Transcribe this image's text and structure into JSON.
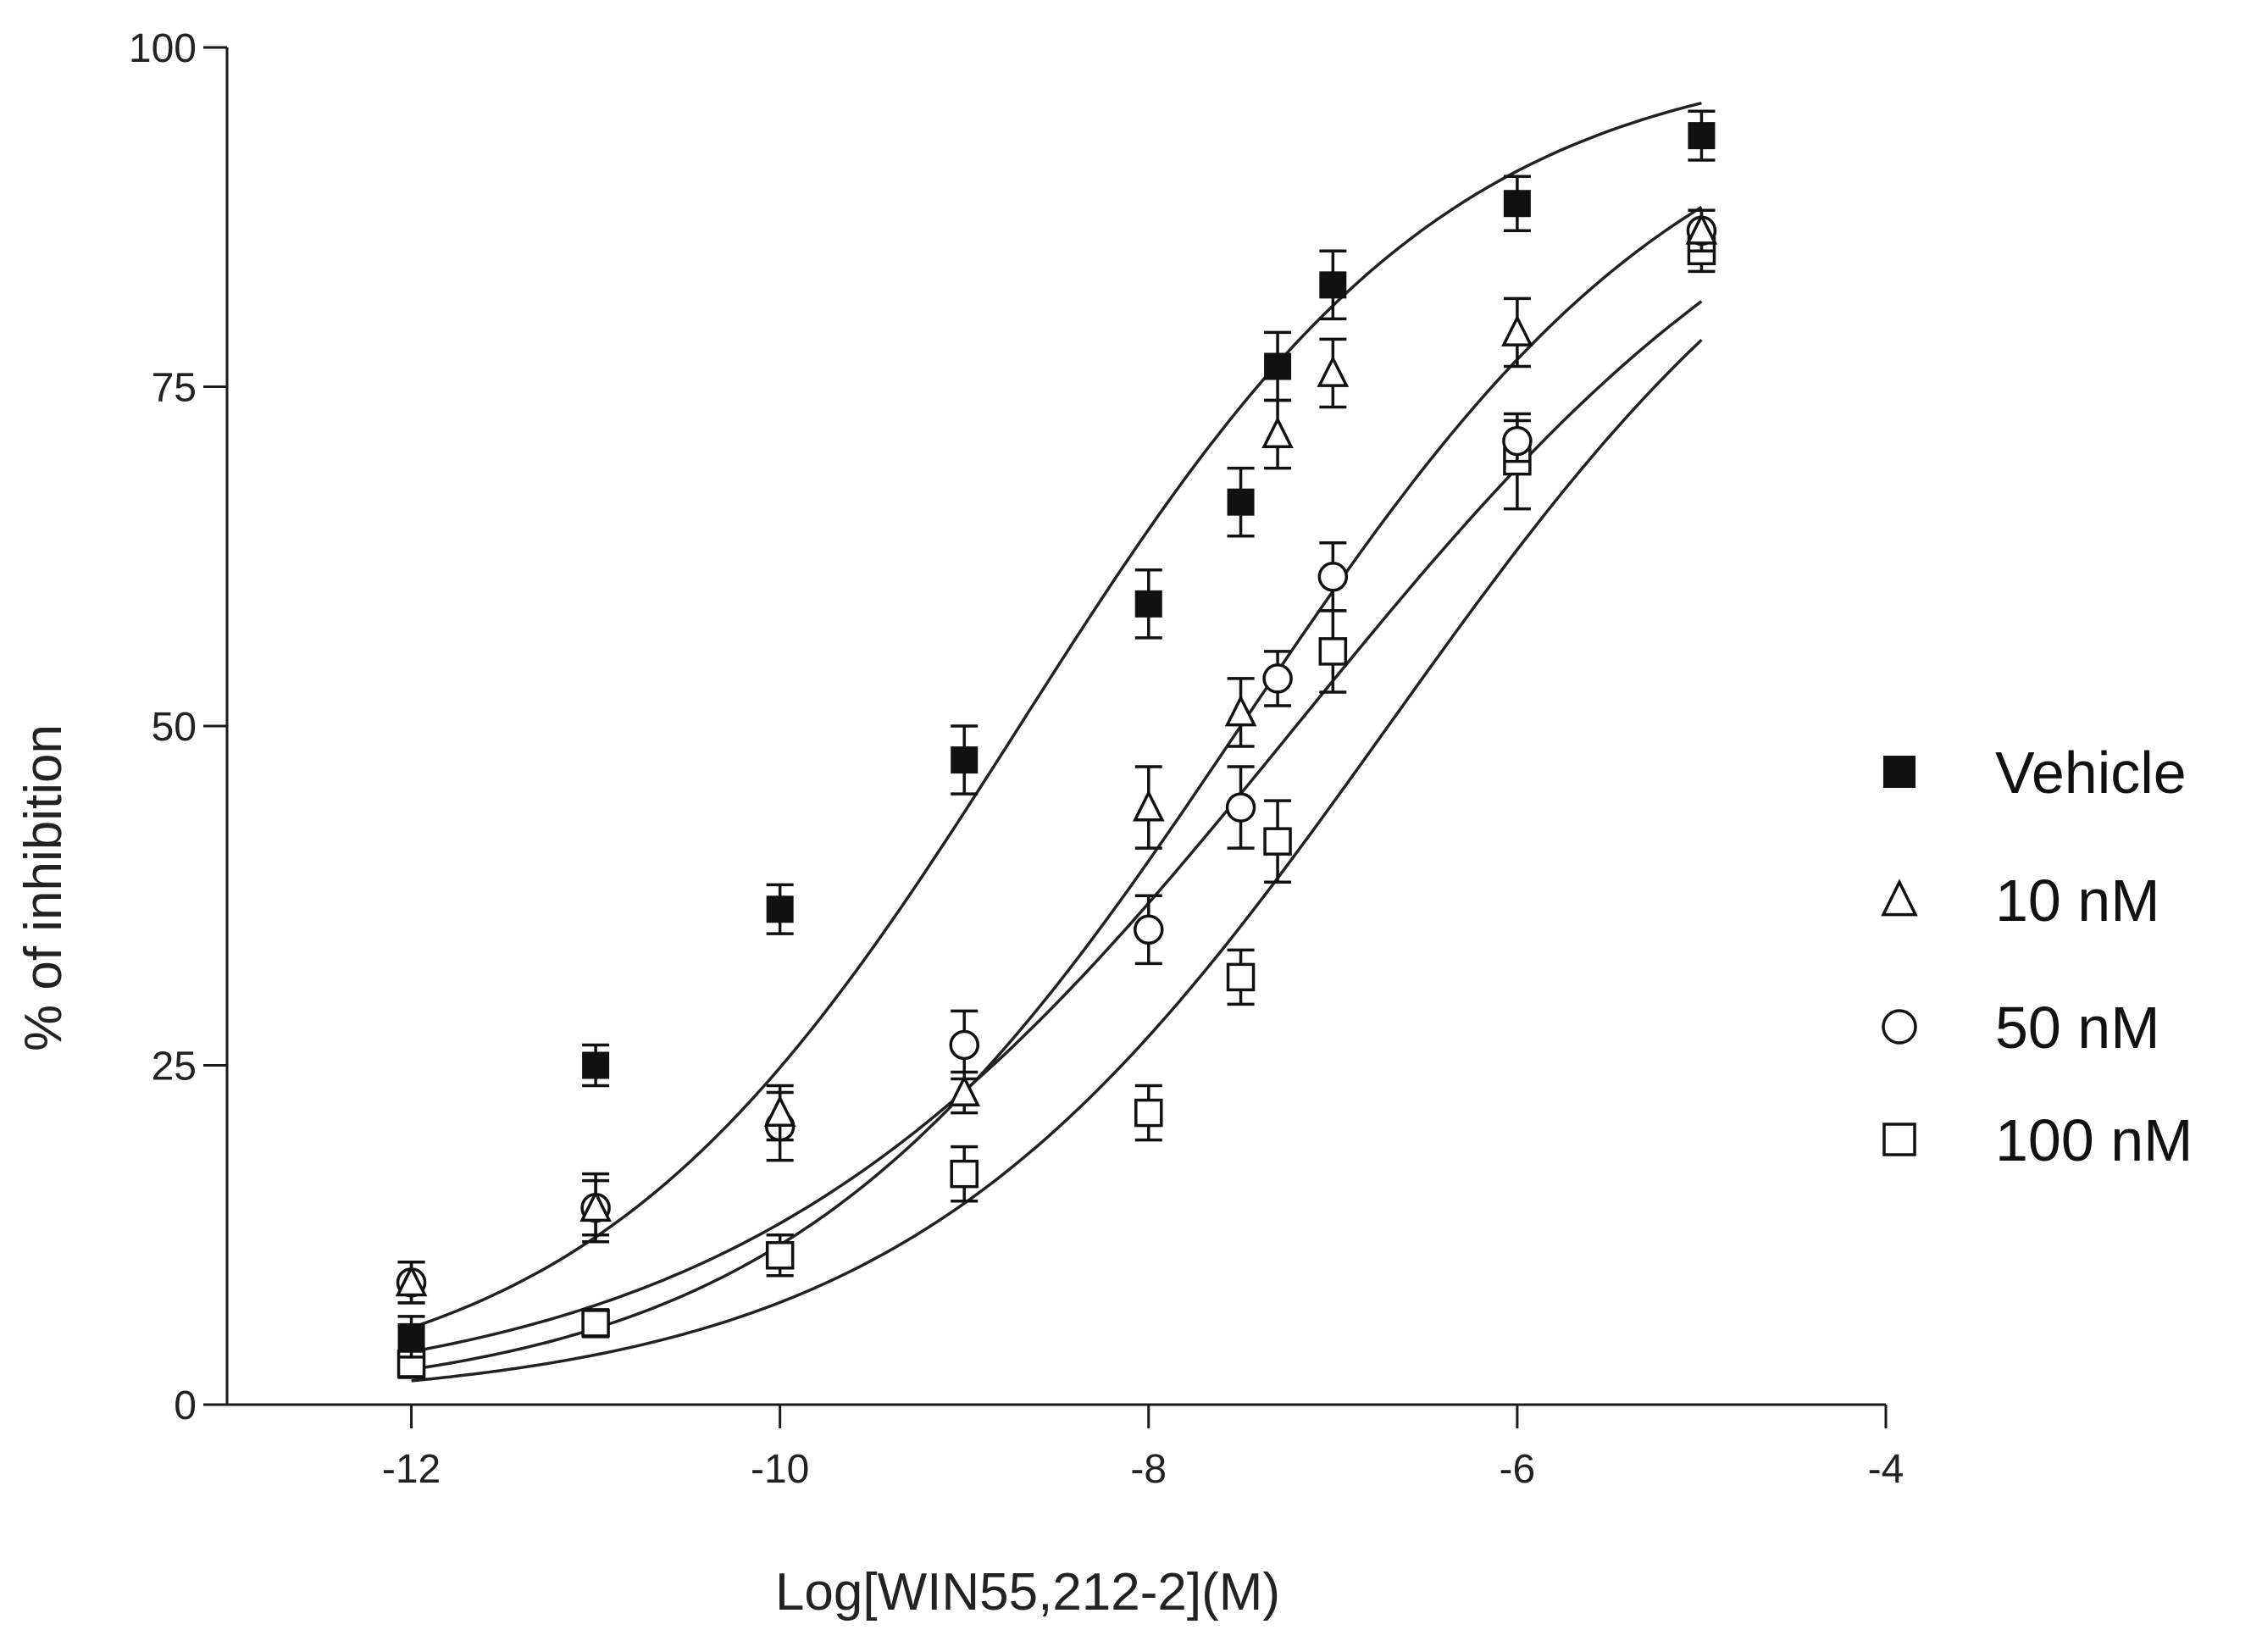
{
  "chart_data": {
    "type": "scatter",
    "xlabel": "Log[WIN55,212-2](M)",
    "ylabel": "% of inhibition",
    "xlim": [
      -13,
      -4
    ],
    "ylim": [
      0,
      100
    ],
    "x_ticks": [
      -12,
      -10,
      -8,
      -6,
      -4
    ],
    "y_ticks": [
      0,
      25,
      50,
      75,
      100
    ],
    "grid": false,
    "legend_position": "right",
    "fit": "sigmoidal dose-response curve per series",
    "series": [
      {
        "name": "Vehicle",
        "marker": "filled-square",
        "x": [
          -12,
          -11,
          -10,
          -9,
          -8,
          -7.5,
          -7.3,
          -7,
          -6,
          -5
        ],
        "y": [
          5,
          25,
          36.5,
          47.5,
          59,
          66.5,
          76.5,
          82.5,
          88.5,
          93.5
        ],
        "err": [
          1.5,
          1.5,
          1.8,
          2.5,
          2.5,
          2.5,
          2.5,
          2.5,
          2,
          1.8
        ],
        "curve": {
          "bottom": 0,
          "top": 100,
          "logec50": -8.7,
          "hill": 0.37
        }
      },
      {
        "name": "10 nM",
        "marker": "open-triangle",
        "x": [
          -12,
          -11,
          -10,
          -9,
          -8,
          -7.5,
          -7.3,
          -7,
          -6,
          -5
        ],
        "y": [
          9,
          14.5,
          21.5,
          23,
          44,
          51,
          71.5,
          76,
          79,
          86.5
        ],
        "err": [
          1.5,
          2.5,
          2,
          1.5,
          3,
          2.5,
          2.5,
          2.5,
          2.5,
          1.5
        ],
        "curve": {
          "bottom": 0,
          "top": 100,
          "logec50": -7.5,
          "hill": 0.35
        }
      },
      {
        "name": "50 nM",
        "marker": "open-circle",
        "x": [
          -12,
          -11,
          -10,
          -9,
          -8,
          -7.5,
          -7.3,
          -7,
          -6,
          -5
        ],
        "y": [
          9,
          14.5,
          20.5,
          26.5,
          35,
          44,
          53.5,
          61,
          71,
          86.5
        ],
        "err": [
          1.5,
          2,
          2.5,
          2.5,
          2.5,
          3,
          2,
          2.5,
          1.5,
          1.5
        ],
        "curve": {
          "bottom": 0,
          "top": 100,
          "logec50": -7.2,
          "hill": 0.29
        }
      },
      {
        "name": "100 nM",
        "marker": "open-square",
        "x": [
          -12,
          -11,
          -10,
          -9,
          -8,
          -7.5,
          -7.3,
          -7,
          -6,
          -5
        ],
        "y": [
          3,
          6,
          11,
          17,
          21.5,
          31.5,
          41.5,
          55.5,
          69.5,
          85
        ],
        "err": [
          1,
          1,
          1.5,
          2,
          2,
          2,
          3,
          3,
          3.5,
          1.5
        ],
        "curve": {
          "bottom": 0,
          "top": 100,
          "logec50": -6.7,
          "hill": 0.33
        }
      }
    ]
  }
}
